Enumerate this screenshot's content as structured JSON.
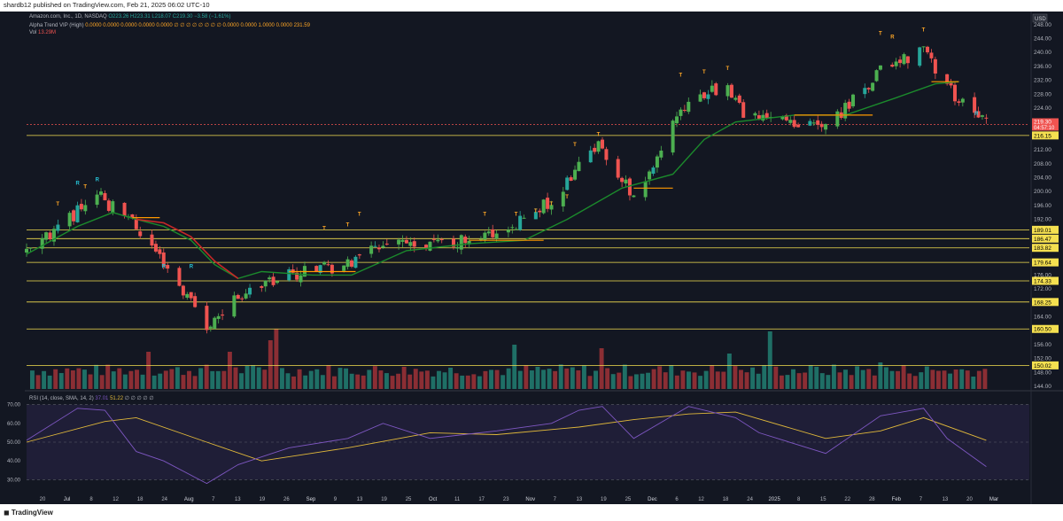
{
  "header": {
    "publisher": "shardb12 published on TradingView.com, Feb 21, 2025 06:02 UTC-10"
  },
  "legend": {
    "symbol": "Amazon.com, Inc., 1D, NASDAQ",
    "ohlc": "O223.26 H223.31 L218.07 C219.30 −3.58 (−1.61%)",
    "indicator_name": "Alpha Trend VIP (High)",
    "indicator_values": "0.0000 0.0000 0.0000 0.0000 0.0000 ∅ ∅ ∅ ∅ ∅ ∅ ∅ ∅ 0.0000 0.0000 1.0000 0.0000 231.59",
    "vol_label": "Vol",
    "vol_value": "13.29M",
    "rsi_label": "RSI (14, close, SMA, 14, 2)",
    "rsi_value": "37.01",
    "rsi_sma_value": "51.22",
    "rsi_extra": "∅ ∅ ∅ ∅ ∅"
  },
  "axis": {
    "currency": "USD",
    "price_ticks": [
      "248.00",
      "244.00",
      "240.00",
      "236.00",
      "232.00",
      "228.00",
      "224.00",
      "220.00",
      "212.00",
      "208.00",
      "204.00",
      "200.00",
      "196.00",
      "192.00",
      "176.00",
      "172.00",
      "164.00",
      "156.00",
      "152.00",
      "148.00",
      "144.00"
    ],
    "rsi_ticks": [
      "70.00",
      "60.00",
      "50.00",
      "40.00",
      "30.00"
    ],
    "date_ticks": [
      "20",
      "Jul",
      "8",
      "12",
      "18",
      "24",
      "Aug",
      "7",
      "13",
      "19",
      "26",
      "Sep",
      "9",
      "13",
      "19",
      "25",
      "Oct",
      "11",
      "17",
      "23",
      "Nov",
      "7",
      "13",
      "19",
      "25",
      "Dec",
      "6",
      "12",
      "18",
      "24",
      "2025",
      "8",
      "15",
      "22",
      "28",
      "Feb",
      "7",
      "13",
      "20",
      "Mar"
    ]
  },
  "price_labels": {
    "last": "219.30",
    "countdown": "04:57:10",
    "levels": [
      "216.15",
      "189.01",
      "186.47",
      "183.82",
      "179.64",
      "174.33",
      "168.25",
      "160.50",
      "150.02"
    ]
  },
  "markers": {
    "t": "T",
    "r": "R"
  },
  "footer": {
    "brand": "TradingView"
  },
  "colors": {
    "background": "#131722",
    "up_candle": "#26a69a",
    "up_candle_bright": "#4caf50",
    "down_candle": "#ef5350",
    "yellow_candle": "#ffeb3b",
    "trend_green": "#1b8a2c",
    "trend_red": "#c62828",
    "level_line": "#f5e050",
    "rsi_line": "#7e57c2",
    "rsi_sma": "#e0b83a",
    "rsi_band": "#2a2548"
  },
  "chart_data": [
    {
      "type": "candlestick",
      "title": "Amazon.com, Inc., 1D, NASDAQ",
      "ylim": [
        144,
        250
      ],
      "x_range": [
        "2024-06-20",
        "2025-03-03"
      ],
      "horizontal_levels": [
        216.15,
        189.01,
        186.47,
        183.82,
        179.64,
        174.33,
        168.25,
        160.5,
        150.02
      ],
      "last_close": 219.3,
      "indicator_line_last": 231.59,
      "series": [
        {
          "name": "Alpha Trend VIP (High)",
          "type": "line",
          "approx_points": [
            [
              "2024-06-20",
              182
            ],
            [
              "2024-07-03",
              190
            ],
            [
              "2024-07-12",
              194
            ],
            [
              "2024-07-18",
              192
            ],
            [
              "2024-07-25",
              190
            ],
            [
              "2024-08-01",
              186
            ],
            [
              "2024-08-07",
              179
            ],
            [
              "2024-08-13",
              175
            ],
            [
              "2024-08-19",
              177
            ],
            [
              "2024-09-01",
              176
            ],
            [
              "2024-09-11",
              176
            ],
            [
              "2024-09-25",
              183
            ],
            [
              "2024-10-11",
              185
            ],
            [
              "2024-10-25",
              186
            ],
            [
              "2024-11-05",
              192
            ],
            [
              "2024-11-19",
              201
            ],
            [
              "2024-12-02",
              205
            ],
            [
              "2024-12-10",
              215
            ],
            [
              "2024-12-18",
              220
            ],
            [
              "2025-01-02",
              222
            ],
            [
              "2025-01-15",
              222
            ],
            [
              "2025-01-28",
              227
            ],
            [
              "2025-02-07",
              231
            ],
            [
              "2025-02-13",
              231.6
            ]
          ]
        }
      ],
      "key_closes": [
        [
          "2024-06-20",
          182.0
        ],
        [
          "2024-07-08",
          199.0
        ],
        [
          "2024-07-18",
          190.0
        ],
        [
          "2024-07-25",
          180.0
        ],
        [
          "2024-08-05",
          161.0
        ],
        [
          "2024-08-13",
          170.0
        ],
        [
          "2024-08-26",
          176.0
        ],
        [
          "2024-09-10",
          179.0
        ],
        [
          "2024-09-19",
          186.0
        ],
        [
          "2024-10-01",
          184.0
        ],
        [
          "2024-10-18",
          188.0
        ],
        [
          "2024-11-01",
          197.0
        ],
        [
          "2024-11-08",
          208.0
        ],
        [
          "2024-11-13",
          214.0
        ],
        [
          "2024-11-22",
          198.0
        ],
        [
          "2024-12-06",
          227.0
        ],
        [
          "2024-12-16",
          230.0
        ],
        [
          "2024-12-20",
          223.0
        ],
        [
          "2025-01-10",
          218.0
        ],
        [
          "2025-01-24",
          235.0
        ],
        [
          "2025-02-04",
          240.0
        ],
        [
          "2025-02-10",
          230.0
        ],
        [
          "2025-02-20",
          219.3
        ]
      ]
    },
    {
      "type": "bar",
      "title": "Vol",
      "last_value": "13.29M"
    },
    {
      "type": "line",
      "title": "RSI (14, close, SMA, 14, 2)",
      "ylim": [
        25,
        75
      ],
      "band": [
        30,
        70
      ],
      "series": [
        {
          "name": "RSI",
          "approx_points": [
            [
              "2024-06-20",
              51
            ],
            [
              "2024-07-03",
              68
            ],
            [
              "2024-07-10",
              67
            ],
            [
              "2024-07-18",
              45
            ],
            [
              "2024-07-25",
              40
            ],
            [
              "2024-08-05",
              28
            ],
            [
              "2024-08-13",
              38
            ],
            [
              "2024-08-26",
              47
            ],
            [
              "2024-09-10",
              52
            ],
            [
              "2024-09-19",
              60
            ],
            [
              "2024-10-01",
              52
            ],
            [
              "2024-10-18",
              56
            ],
            [
              "2024-11-01",
              60
            ],
            [
              "2024-11-08",
              67
            ],
            [
              "2024-11-14",
              69
            ],
            [
              "2024-11-22",
              52
            ],
            [
              "2024-12-06",
              69
            ],
            [
              "2024-12-18",
              63
            ],
            [
              "2024-12-24",
              55
            ],
            [
              "2025-01-10",
              44
            ],
            [
              "2025-01-24",
              64
            ],
            [
              "2025-02-04",
              68
            ],
            [
              "2025-02-10",
              52
            ],
            [
              "2025-02-20",
              37
            ]
          ]
        },
        {
          "name": "RSI-based MA",
          "approx_points": [
            [
              "2024-06-20",
              50
            ],
            [
              "2024-07-10",
              61
            ],
            [
              "2024-07-18",
              63
            ],
            [
              "2024-08-05",
              50
            ],
            [
              "2024-08-19",
              40
            ],
            [
              "2024-09-10",
              47
            ],
            [
              "2024-10-01",
              55
            ],
            [
              "2024-10-18",
              54
            ],
            [
              "2024-11-08",
              58
            ],
            [
              "2024-11-22",
              62
            ],
            [
              "2024-12-06",
              65
            ],
            [
              "2024-12-18",
              66
            ],
            [
              "2025-01-10",
              52
            ],
            [
              "2025-01-24",
              56
            ],
            [
              "2025-02-04",
              63
            ],
            [
              "2025-02-20",
              51
            ]
          ]
        }
      ]
    }
  ]
}
